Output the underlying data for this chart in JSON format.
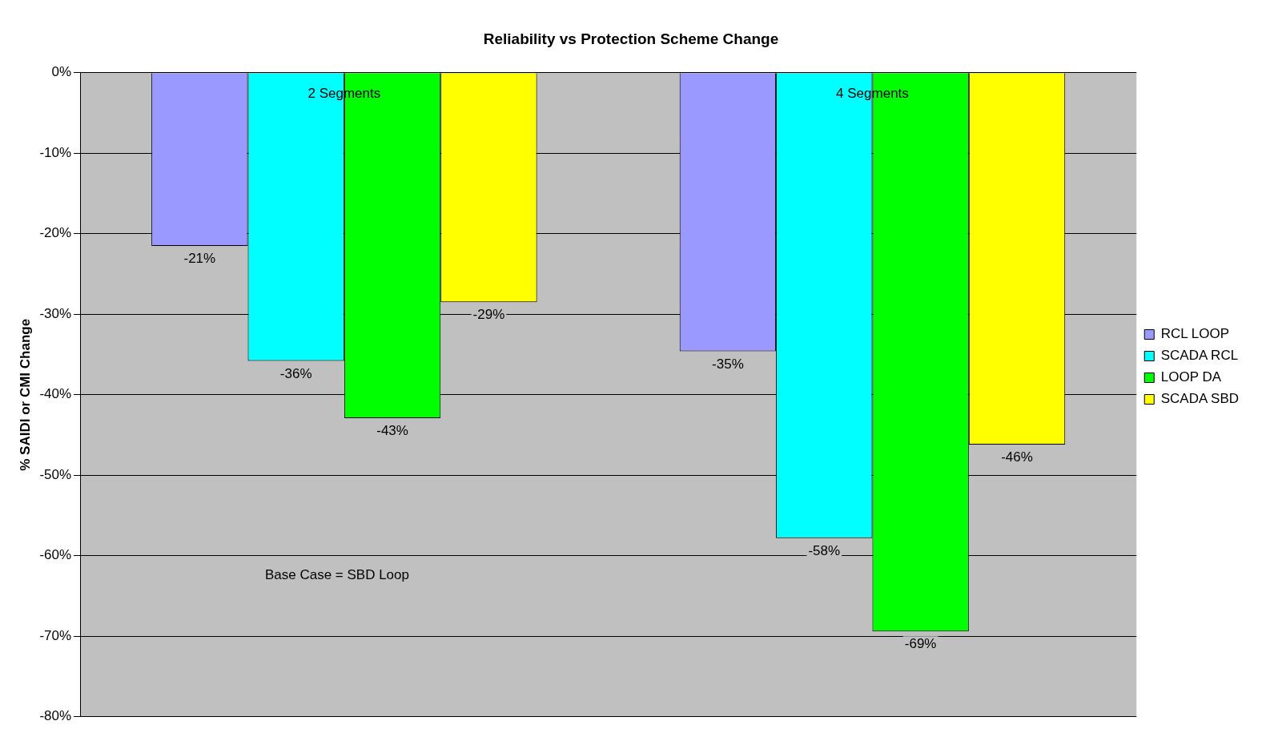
{
  "chart_data": {
    "type": "bar",
    "title": "Reliability vs Protection Scheme Change",
    "ylabel": "% SAIDI or CMI Change",
    "categories": [
      "2 Segments",
      "4 Segments"
    ],
    "series": [
      {
        "name": "RCL LOOP",
        "color": "#9999ff",
        "values": [
          -21.5,
          -34.6
        ],
        "value_labels": [
          "-21%",
          "-35%"
        ]
      },
      {
        "name": "SCADA RCL",
        "color": "#00ffff",
        "values": [
          -35.8,
          -57.8
        ],
        "value_labels": [
          "-36%",
          "-58%"
        ]
      },
      {
        "name": "LOOP DA",
        "color": "#00ff00",
        "values": [
          -42.9,
          -69.4
        ],
        "value_labels": [
          "-43%",
          "-69%"
        ]
      },
      {
        "name": "SCADA SBD",
        "color": "#ffff00",
        "values": [
          -28.5,
          -46.2
        ],
        "value_labels": [
          "-29%",
          "-46%"
        ]
      }
    ],
    "ylim": [
      -80,
      0
    ],
    "yticks": [
      {
        "value": 0,
        "label": "0%"
      },
      {
        "value": -10,
        "label": "-10%"
      },
      {
        "value": -20,
        "label": "-20%"
      },
      {
        "value": -30,
        "label": "-30%"
      },
      {
        "value": -40,
        "label": "-40%"
      },
      {
        "value": -50,
        "label": "-50%"
      },
      {
        "value": -60,
        "label": "-60%"
      },
      {
        "value": -70,
        "label": "-70%"
      },
      {
        "value": -80,
        "label": "-80%"
      }
    ],
    "grid": "y",
    "legend": "right",
    "annotations": [
      "Base Case = SBD Loop"
    ]
  }
}
